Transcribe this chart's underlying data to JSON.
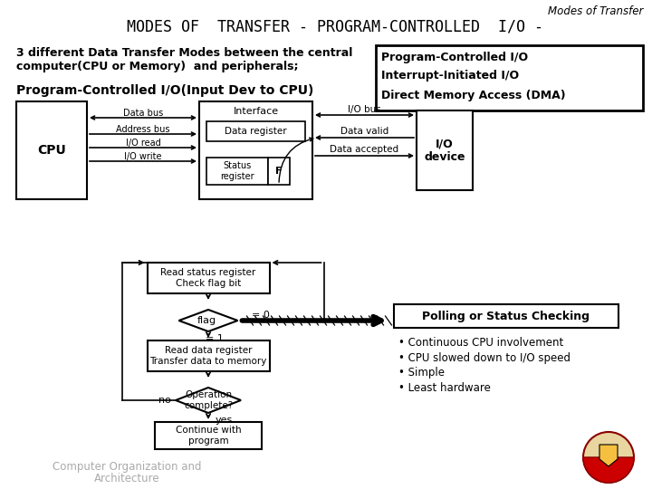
{
  "bg_color": "#ffffff",
  "title_italic": "Modes of Transfer",
  "main_title": "MODES OF  TRANSFER - PROGRAM-CONTROLLED  I/O -",
  "subtitle_line1": "3 different Data Transfer Modes between the central",
  "subtitle_line2": "computer(CPU or Memory)  and peripherals;",
  "box_items": [
    "Program-Controlled I/O",
    "Interrupt-Initiated I/O",
    "Direct Memory Access (DMA)"
  ],
  "section_title": "Program-Controlled I/O(Input Dev to CPU)",
  "cpu_label": "CPU",
  "io_device_label": "I/O\ndevice",
  "bus_labels": [
    "Data bus",
    "Address bus",
    "I/O read",
    "I/O write"
  ],
  "interface_label": "Interface",
  "data_reg_label": "Data register",
  "status_reg_label": "Status\nregister",
  "flag_label": "F",
  "io_bus_label": "I/O bus",
  "data_valid_label": "Data valid",
  "data_accepted_label": "Data accepted",
  "flow_box1": "Read status register\nCheck flag bit",
  "flow_diamond_label": "flag",
  "flow_zero": "= 0",
  "flow_one": "= 1",
  "flow_box2": "Read data register\nTransfer data to memory",
  "flow_diamond2_label": "Operation\ncomplete?",
  "flow_no": "no",
  "flow_yes": "yes",
  "flow_box3": "Continue with\nprogram",
  "polling_box_label": "Polling or Status Checking",
  "bullet_points": [
    "• Continuous CPU involvement",
    "• CPU slowed down to I/O speed",
    "• Simple",
    "• Least hardware"
  ],
  "footer_text1": "Computer Organization and",
  "footer_text2": "Architecture"
}
